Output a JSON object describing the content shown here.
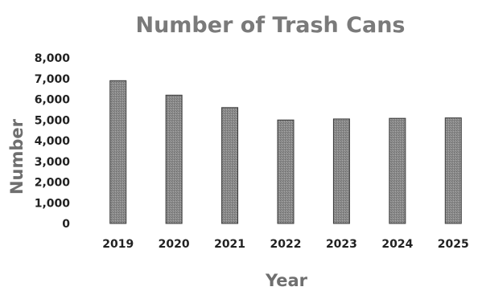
{
  "chart_data": {
    "type": "bar",
    "title": "Number of Trash Cans",
    "xlabel": "Year",
    "ylabel": "Number",
    "categories": [
      "2019",
      "2020",
      "2021",
      "2022",
      "2023",
      "2024",
      "2025"
    ],
    "values": [
      6900,
      6200,
      5600,
      5000,
      5050,
      5080,
      5100
    ],
    "ylim": [
      0,
      8000
    ],
    "yticks": [
      {
        "value": 0,
        "label": "0"
      },
      {
        "value": 1000,
        "label": "1,000"
      },
      {
        "value": 2000,
        "label": "2,000"
      },
      {
        "value": 3000,
        "label": "3,000"
      },
      {
        "value": 4000,
        "label": "4,000"
      },
      {
        "value": 5000,
        "label": "5,000"
      },
      {
        "value": 6000,
        "label": "6,000"
      },
      {
        "value": 7000,
        "label": "7,000"
      },
      {
        "value": 8000,
        "label": "8,000"
      }
    ],
    "grid": false,
    "legend": "none",
    "bar_color": "#8c8c8c",
    "bar_edge_color": "#3a3a3a"
  }
}
